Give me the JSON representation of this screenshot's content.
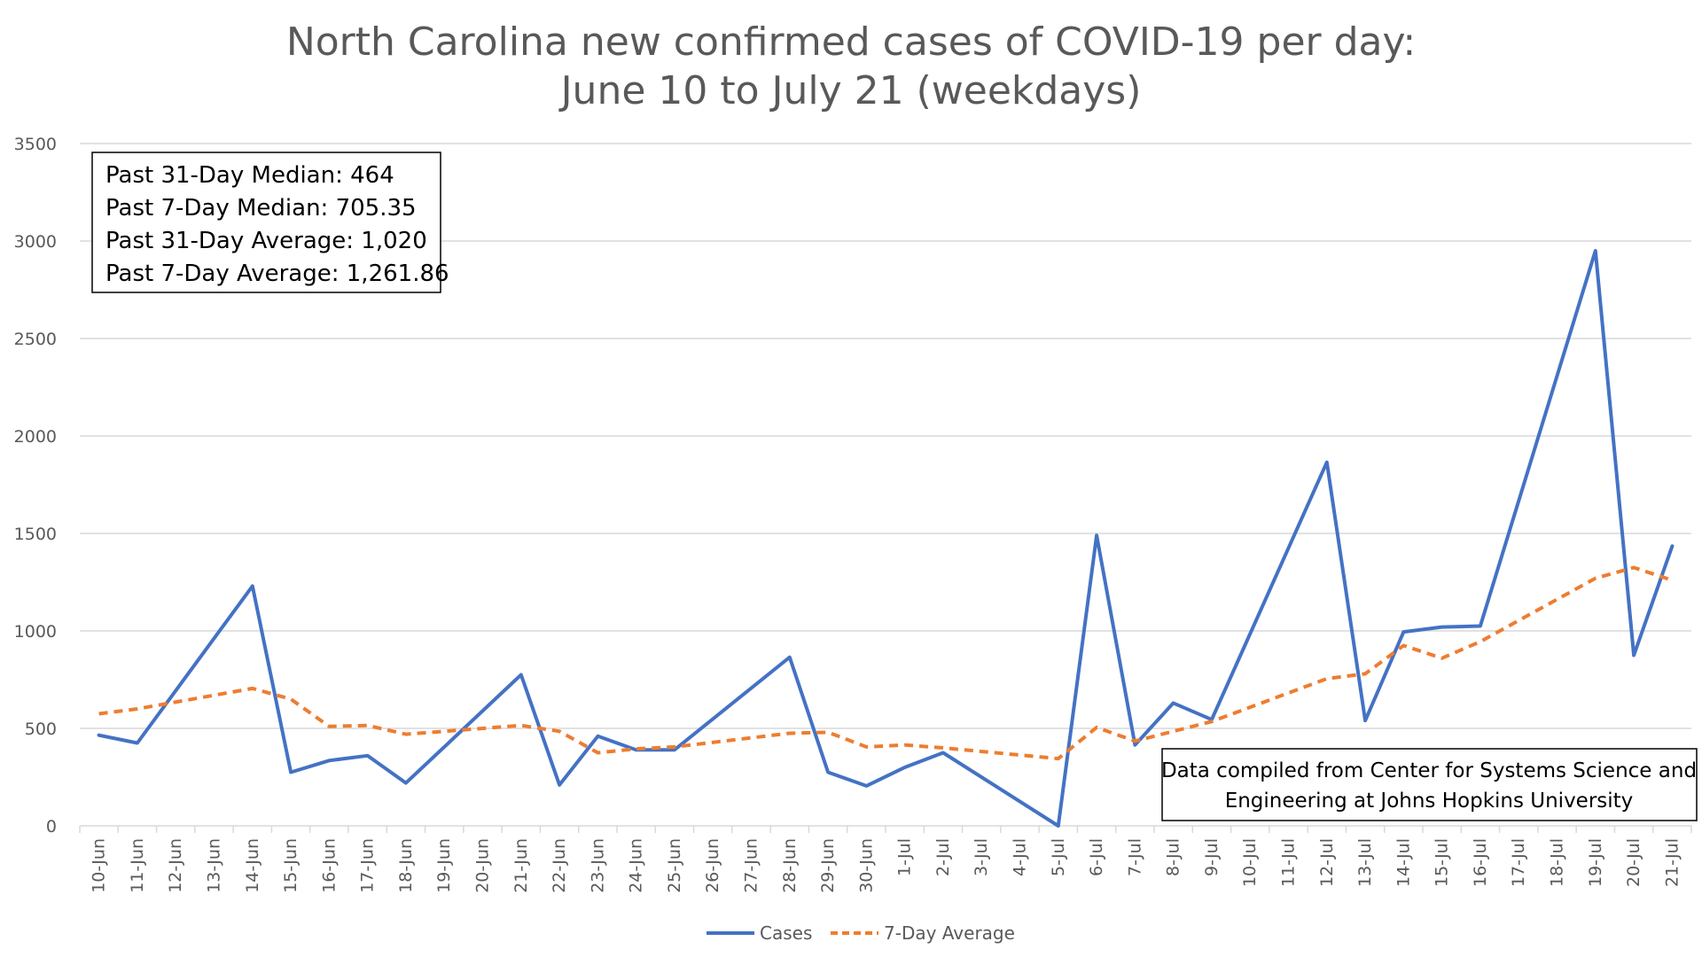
{
  "chart_data": {
    "type": "line",
    "title": "North Carolina new confirmed cases of COVID-19 per day:",
    "subtitle": "June 10 to July 21 (weekdays)",
    "xlabel": "",
    "ylabel": "",
    "ylim": [
      0,
      3500
    ],
    "yticks": [
      "0",
      "500",
      "1000",
      "1500",
      "2000",
      "2500",
      "3000",
      "3500"
    ],
    "grid": true,
    "legend_position": "bottom",
    "categories": [
      "10-Jun",
      "11-Jun",
      "12-Jun",
      "13-Jun",
      "14-Jun",
      "15-Jun",
      "16-Jun",
      "17-Jun",
      "18-Jun",
      "19-Jun",
      "20-Jun",
      "21-Jun",
      "22-Jun",
      "23-Jun",
      "24-Jun",
      "25-Jun",
      "26-Jun",
      "27-Jun",
      "28-Jun",
      "29-Jun",
      "30-Jun",
      "1-Jul",
      "2-Jul",
      "3-Jul",
      "4-Jul",
      "5-Jul",
      "6-Jul",
      "7-Jul",
      "8-Jul",
      "9-Jul",
      "10-Jul",
      "11-Jul",
      "12-Jul",
      "13-Jul",
      "14-Jul",
      "15-Jul",
      "16-Jul",
      "17-Jul",
      "18-Jul",
      "19-Jul",
      "20-Jul",
      "21-Jul"
    ],
    "series": [
      {
        "name": "Cases",
        "color": "#4472C4",
        "style": "solid",
        "values": [
          465,
          425,
          null,
          null,
          1230,
          275,
          335,
          360,
          220,
          null,
          null,
          775,
          210,
          460,
          390,
          390,
          null,
          null,
          865,
          275,
          205,
          300,
          375,
          null,
          null,
          0,
          1490,
          415,
          630,
          545,
          null,
          null,
          1865,
          540,
          995,
          1020,
          1025,
          null,
          null,
          2950,
          875,
          1435
        ]
      },
      {
        "name": "7-Day Average",
        "color": "#ED7D31",
        "style": "dashed",
        "values": [
          575,
          600,
          null,
          null,
          705,
          650,
          510,
          515,
          470,
          null,
          null,
          515,
          485,
          375,
          395,
          405,
          null,
          null,
          475,
          480,
          405,
          415,
          400,
          null,
          null,
          345,
          505,
          435,
          485,
          535,
          null,
          null,
          755,
          780,
          925,
          860,
          945,
          null,
          null,
          1270,
          1325,
          1260
        ]
      }
    ],
    "annotations": [
      {
        "lines": [
          "Past 31-Day Median: 464",
          "Past 7-Day Median: 705.35",
          "Past 31-Day Average: 1,020",
          "Past 7-Day Average: 1,261.86"
        ],
        "position": "top-left"
      },
      {
        "lines": [
          "Data compiled from Center for Systems Science and",
          "Engineering at Johns Hopkins University"
        ],
        "position": "bottom-right"
      }
    ]
  }
}
